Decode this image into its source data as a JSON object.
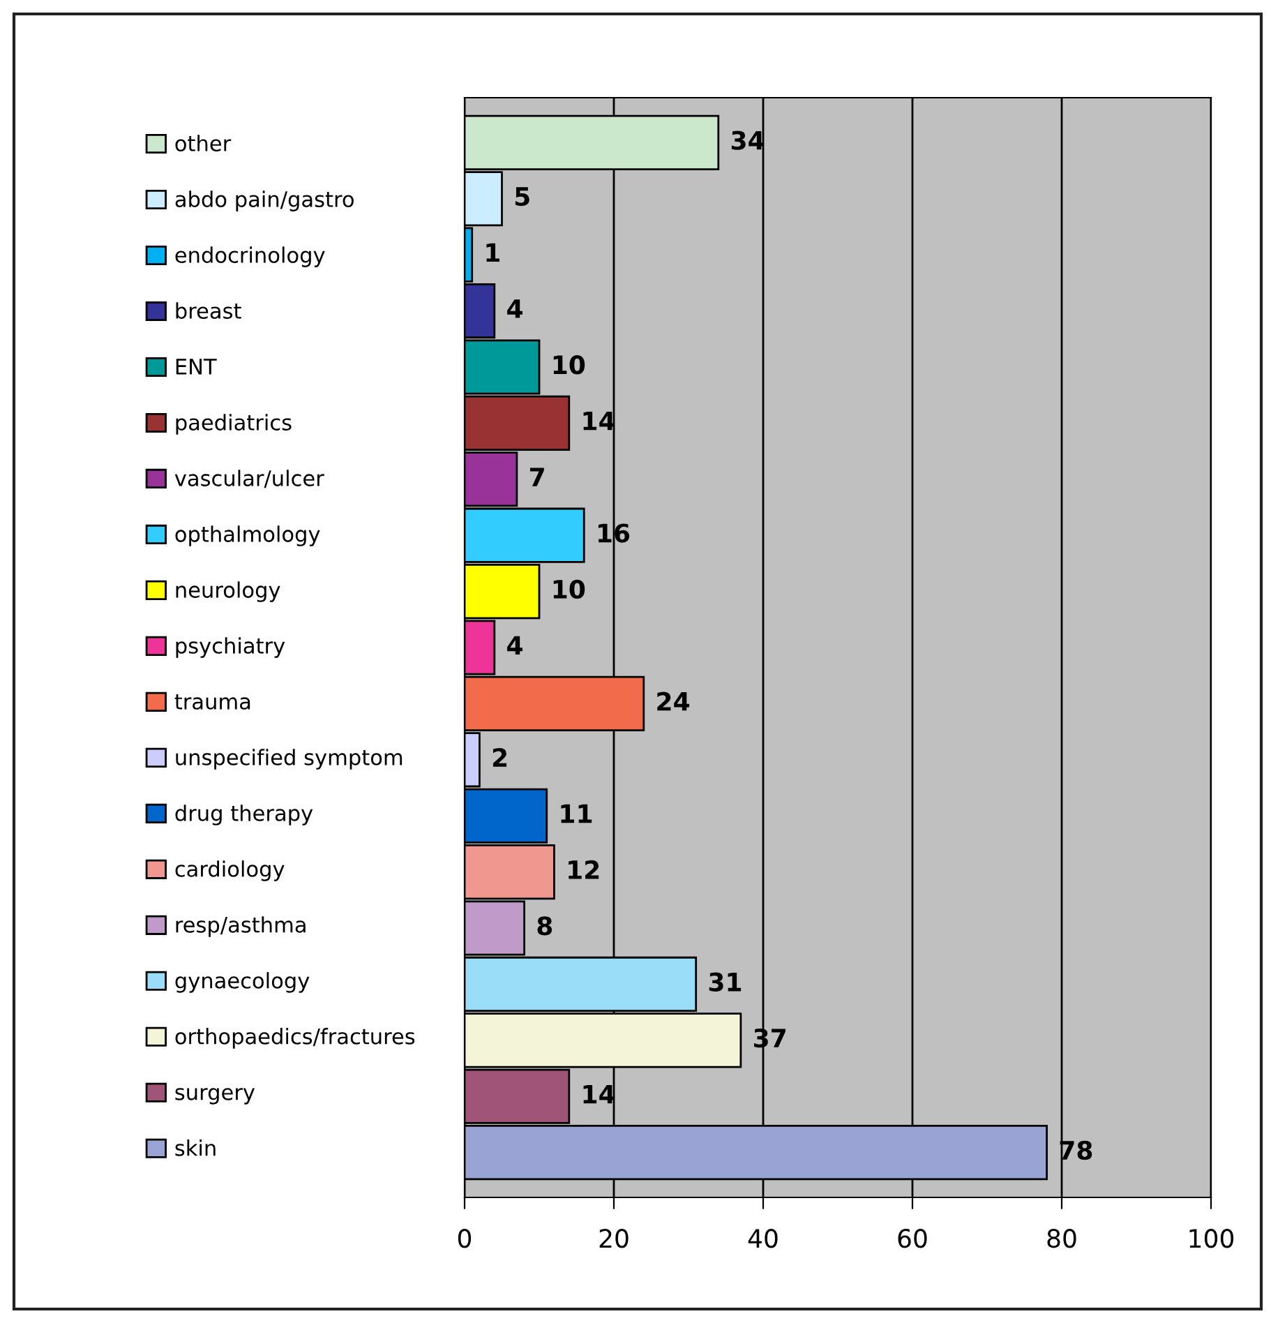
{
  "chart_data": {
    "type": "bar",
    "orientation": "horizontal",
    "categories": [
      null,
      null,
      null,
      null,
      null,
      null,
      null,
      null,
      null,
      null,
      null,
      null,
      null,
      null,
      null,
      null,
      null,
      null,
      null
    ],
    "series": [
      {
        "name": "other",
        "color": "#cce8cc",
        "values": [
          34,
          null,
          null,
          null,
          null,
          null,
          null,
          null,
          null,
          null,
          null,
          null,
          null,
          null,
          null,
          null,
          null,
          null,
          null
        ]
      },
      {
        "name": "abdo pain/gastro",
        "color": "#ccecff",
        "values": [
          null,
          5,
          null,
          null,
          null,
          null,
          null,
          null,
          null,
          null,
          null,
          null,
          null,
          null,
          null,
          null,
          null,
          null,
          null
        ]
      },
      {
        "name": "endocrinology",
        "color": "#00b0f0",
        "values": [
          null,
          null,
          1,
          null,
          null,
          null,
          null,
          null,
          null,
          null,
          null,
          null,
          null,
          null,
          null,
          null,
          null,
          null,
          null
        ]
      },
      {
        "name": "breast",
        "color": "#333399",
        "values": [
          null,
          null,
          null,
          4,
          null,
          null,
          null,
          null,
          null,
          null,
          null,
          null,
          null,
          null,
          null,
          null,
          null,
          null,
          null
        ]
      },
      {
        "name": "ENT",
        "color": "#009999",
        "values": [
          null,
          null,
          null,
          null,
          10,
          null,
          null,
          null,
          null,
          null,
          null,
          null,
          null,
          null,
          null,
          null,
          null,
          null,
          null
        ]
      },
      {
        "name": "paediatrics",
        "color": "#993333",
        "values": [
          null,
          null,
          null,
          null,
          null,
          14,
          null,
          null,
          null,
          null,
          null,
          null,
          null,
          null,
          null,
          null,
          null,
          null,
          null
        ]
      },
      {
        "name": "vascular/ulcer",
        "color": "#993399",
        "values": [
          null,
          null,
          null,
          null,
          null,
          null,
          7,
          null,
          null,
          null,
          null,
          null,
          null,
          null,
          null,
          null,
          null,
          null,
          null
        ]
      },
      {
        "name": "opthalmology",
        "color": "#33ccff",
        "values": [
          null,
          null,
          null,
          null,
          null,
          null,
          null,
          16,
          null,
          null,
          null,
          null,
          null,
          null,
          null,
          null,
          null,
          null,
          null
        ]
      },
      {
        "name": "neurology",
        "color": "#ffff00",
        "values": [
          null,
          null,
          null,
          null,
          null,
          null,
          null,
          null,
          10,
          null,
          null,
          null,
          null,
          null,
          null,
          null,
          null,
          null,
          null
        ]
      },
      {
        "name": "psychiatry",
        "color": "#ee3399",
        "values": [
          null,
          null,
          null,
          null,
          null,
          null,
          null,
          null,
          null,
          4,
          null,
          null,
          null,
          null,
          null,
          null,
          null,
          null,
          null
        ]
      },
      {
        "name": "trauma",
        "color": "#f26b4a",
        "values": [
          null,
          null,
          null,
          null,
          null,
          null,
          null,
          null,
          null,
          null,
          24,
          null,
          null,
          null,
          null,
          null,
          null,
          null,
          null
        ]
      },
      {
        "name": "unspecified symptom",
        "color": "#ccccff",
        "values": [
          null,
          null,
          null,
          null,
          null,
          null,
          null,
          null,
          null,
          null,
          null,
          2,
          null,
          null,
          null,
          null,
          null,
          null,
          null
        ]
      },
      {
        "name": "drug therapy",
        "color": "#0066cc",
        "values": [
          null,
          null,
          null,
          null,
          null,
          null,
          null,
          null,
          null,
          null,
          null,
          null,
          11,
          null,
          null,
          null,
          null,
          null,
          null
        ]
      },
      {
        "name": "cardiology",
        "color": "#f09890",
        "values": [
          null,
          null,
          null,
          null,
          null,
          null,
          null,
          null,
          null,
          null,
          null,
          null,
          null,
          12,
          null,
          null,
          null,
          null,
          null
        ]
      },
      {
        "name": "resp/asthma",
        "color": "#c09ac8",
        "values": [
          null,
          null,
          null,
          null,
          null,
          null,
          null,
          null,
          null,
          null,
          null,
          null,
          null,
          null,
          8,
          null,
          null,
          null,
          null
        ]
      },
      {
        "name": "gynaecology",
        "color": "#99ddf8",
        "values": [
          null,
          null,
          null,
          null,
          null,
          null,
          null,
          null,
          null,
          null,
          null,
          null,
          null,
          null,
          null,
          31,
          null,
          null,
          null
        ]
      },
      {
        "name": "orthopaedics/fractures",
        "color": "#f4f4d8",
        "values": [
          null,
          null,
          null,
          null,
          null,
          null,
          null,
          null,
          null,
          null,
          null,
          null,
          null,
          null,
          null,
          null,
          37,
          null,
          null
        ]
      },
      {
        "name": "surgery",
        "color": "#a05578",
        "values": [
          null,
          null,
          null,
          null,
          null,
          null,
          null,
          null,
          null,
          null,
          null,
          null,
          null,
          null,
          null,
          null,
          null,
          14,
          null
        ]
      },
      {
        "name": "skin",
        "color": "#99a4d4",
        "values": [
          null,
          null,
          null,
          null,
          null,
          null,
          null,
          null,
          null,
          null,
          null,
          null,
          null,
          null,
          null,
          null,
          null,
          null,
          78
        ]
      }
    ],
    "xlim": [
      0,
      100
    ],
    "xticks": [
      0,
      20,
      40,
      60,
      80,
      100
    ],
    "grid": "x",
    "legend": "left",
    "tick_labels": "x",
    "data_labels": true
  }
}
